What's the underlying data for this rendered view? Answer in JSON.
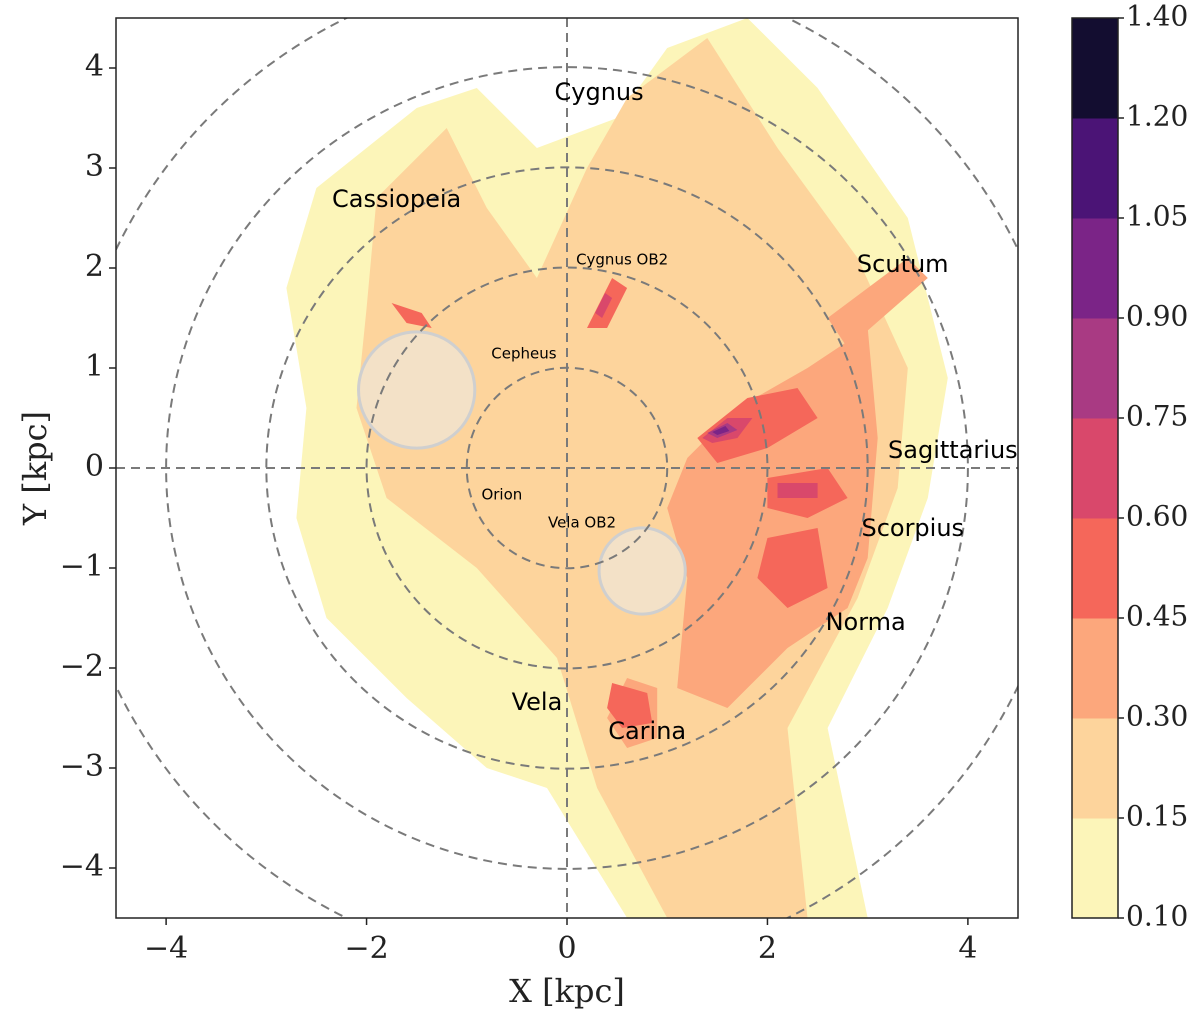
{
  "chart_data": {
    "type": "heatmap",
    "title": "",
    "xlabel": "X [kpc]",
    "ylabel": "Y [kpc]",
    "xlim": [
      -4.5,
      4.5
    ],
    "ylim": [
      -4.5,
      4.5
    ],
    "x_ticks": [
      -4,
      -2,
      0,
      2,
      4
    ],
    "y_ticks": [
      -4,
      -3,
      -2,
      -1,
      0,
      1,
      2,
      3,
      4
    ],
    "x_tick_labels": [
      "−4",
      "−2",
      "0",
      "2",
      "4"
    ],
    "y_tick_labels": [
      "−4",
      "−3",
      "−2",
      "−1",
      "0",
      "1",
      "2",
      "3",
      "4"
    ],
    "ring_radii_kpc": [
      1,
      2,
      3,
      4,
      5
    ],
    "colorbar": {
      "levels": [
        0.1,
        0.15,
        0.3,
        0.45,
        0.6,
        0.75,
        0.9,
        1.05,
        1.2,
        1.4
      ],
      "labels": [
        "0.10",
        "0.15",
        "0.30",
        "0.45",
        "0.60",
        "0.75",
        "0.90",
        "1.05",
        "1.20",
        "1.40"
      ],
      "colors": [
        "#fcf5b9",
        "#fdd49c",
        "#fca77c",
        "#f5675a",
        "#d9486b",
        "#a93a83",
        "#7b2487",
        "#4b1476",
        "#130d30"
      ]
    },
    "regions": [
      {
        "name": "Cygnus",
        "x": 0.32,
        "y": 3.75,
        "size": "large"
      },
      {
        "name": "Cassiopeia",
        "x": -1.7,
        "y": 2.68,
        "size": "large"
      },
      {
        "name": "Cygnus OB2",
        "x": 0.55,
        "y": 2.08,
        "size": "small"
      },
      {
        "name": "Scutum",
        "x": 3.35,
        "y": 2.03,
        "size": "large"
      },
      {
        "name": "Cepheus",
        "x": -0.43,
        "y": 1.14,
        "size": "small"
      },
      {
        "name": "Sagittarius",
        "x": 3.85,
        "y": 0.17,
        "size": "large"
      },
      {
        "name": "Orion",
        "x": -0.65,
        "y": -0.27,
        "size": "small"
      },
      {
        "name": "Vela OB2",
        "x": 0.15,
        "y": -0.55,
        "size": "small"
      },
      {
        "name": "Scorpius",
        "x": 3.45,
        "y": -0.61,
        "size": "large"
      },
      {
        "name": "Norma",
        "x": 2.98,
        "y": -1.55,
        "size": "large"
      },
      {
        "name": "Vela",
        "x": -0.3,
        "y": -2.35,
        "size": "large"
      },
      {
        "name": "Carina",
        "x": 0.8,
        "y": -2.64,
        "size": "large"
      }
    ],
    "masked_circles": [
      {
        "x": -1.5,
        "y": 0.78,
        "r": 0.58
      },
      {
        "x": 0.75,
        "y": -1.03,
        "r": 0.43
      }
    ],
    "filled_regions": [
      {
        "level": 0,
        "points": [
          [
            -2.5,
            2.8
          ],
          [
            -1.5,
            3.6
          ],
          [
            -0.9,
            3.8
          ],
          [
            -0.3,
            3.2
          ],
          [
            0.5,
            3.5
          ],
          [
            1.0,
            4.2
          ],
          [
            1.8,
            4.5
          ],
          [
            2.5,
            3.8
          ],
          [
            3.4,
            2.5
          ],
          [
            3.8,
            0.9
          ],
          [
            3.6,
            -0.3
          ],
          [
            3.2,
            -1.4
          ],
          [
            2.6,
            -2.6
          ],
          [
            3.0,
            -4.5
          ],
          [
            0.6,
            -4.5
          ],
          [
            -0.2,
            -3.2
          ],
          [
            -0.8,
            -3.0
          ],
          [
            -1.6,
            -2.3
          ],
          [
            -2.4,
            -1.5
          ],
          [
            -2.7,
            -0.5
          ],
          [
            -2.6,
            0.6
          ],
          [
            -2.8,
            1.8
          ]
        ]
      },
      {
        "level": 1,
        "points": [
          [
            -1.9,
            2.7
          ],
          [
            -1.2,
            3.4
          ],
          [
            -0.8,
            2.6
          ],
          [
            -0.3,
            1.9
          ],
          [
            0.2,
            3.0
          ],
          [
            0.6,
            3.7
          ],
          [
            1.4,
            4.3
          ],
          [
            2.1,
            3.2
          ],
          [
            2.9,
            2.1
          ],
          [
            3.4,
            1.0
          ],
          [
            3.3,
            -0.2
          ],
          [
            2.9,
            -1.3
          ],
          [
            2.2,
            -2.6
          ],
          [
            2.4,
            -4.5
          ],
          [
            1.0,
            -4.5
          ],
          [
            0.3,
            -3.2
          ],
          [
            -0.1,
            -1.9
          ],
          [
            -0.9,
            -1.0
          ],
          [
            -1.8,
            -0.3
          ],
          [
            -2.1,
            0.6
          ],
          [
            -2.0,
            1.6
          ]
        ]
      },
      {
        "level": 2,
        "points": [
          [
            1.2,
            0.1
          ],
          [
            1.7,
            0.6
          ],
          [
            2.4,
            1.0
          ],
          [
            3.0,
            1.4
          ],
          [
            3.1,
            0.3
          ],
          [
            3.0,
            -0.9
          ],
          [
            2.8,
            -1.4
          ],
          [
            2.2,
            -1.8
          ],
          [
            1.6,
            -2.4
          ],
          [
            1.1,
            -2.2
          ],
          [
            1.2,
            -1.1
          ],
          [
            1.0,
            -0.4
          ]
        ]
      },
      {
        "level": 2,
        "points": [
          [
            2.6,
            1.5
          ],
          [
            3.4,
            2.1
          ],
          [
            3.6,
            1.9
          ],
          [
            2.8,
            1.2
          ]
        ]
      },
      {
        "level": 2,
        "points": [
          [
            0.6,
            -2.1
          ],
          [
            0.9,
            -2.2
          ],
          [
            0.9,
            -2.7
          ],
          [
            0.6,
            -2.8
          ],
          [
            0.4,
            -2.5
          ]
        ]
      },
      {
        "level": 3,
        "points": [
          [
            1.3,
            0.3
          ],
          [
            1.8,
            0.7
          ],
          [
            2.3,
            0.8
          ],
          [
            2.5,
            0.5
          ],
          [
            2.0,
            0.2
          ],
          [
            1.5,
            0.05
          ]
        ]
      },
      {
        "level": 3,
        "points": [
          [
            2.0,
            -0.1
          ],
          [
            2.6,
            0.0
          ],
          [
            2.8,
            -0.3
          ],
          [
            2.4,
            -0.5
          ],
          [
            2.0,
            -0.4
          ]
        ]
      },
      {
        "level": 3,
        "points": [
          [
            2.0,
            -0.7
          ],
          [
            2.5,
            -0.6
          ],
          [
            2.6,
            -1.2
          ],
          [
            2.2,
            -1.4
          ],
          [
            1.9,
            -1.1
          ]
        ]
      },
      {
        "level": 3,
        "points": [
          [
            0.45,
            -2.15
          ],
          [
            0.8,
            -2.25
          ],
          [
            0.85,
            -2.55
          ],
          [
            0.55,
            -2.6
          ],
          [
            0.4,
            -2.4
          ]
        ]
      },
      {
        "level": 3,
        "points": [
          [
            0.2,
            1.4
          ],
          [
            0.45,
            1.9
          ],
          [
            0.6,
            1.8
          ],
          [
            0.4,
            1.4
          ]
        ]
      },
      {
        "level": 3,
        "points": [
          [
            -1.75,
            1.65
          ],
          [
            -1.45,
            1.55
          ],
          [
            -1.35,
            1.4
          ],
          [
            -1.6,
            1.45
          ]
        ]
      },
      {
        "level": 4,
        "points": [
          [
            1.35,
            0.3
          ],
          [
            1.6,
            0.5
          ],
          [
            1.85,
            0.5
          ],
          [
            1.7,
            0.3
          ],
          [
            1.45,
            0.25
          ]
        ]
      },
      {
        "level": 4,
        "points": [
          [
            2.1,
            -0.15
          ],
          [
            2.5,
            -0.15
          ],
          [
            2.5,
            -0.3
          ],
          [
            2.1,
            -0.3
          ]
        ]
      },
      {
        "level": 4,
        "points": [
          [
            0.28,
            1.55
          ],
          [
            0.38,
            1.75
          ],
          [
            0.45,
            1.7
          ],
          [
            0.35,
            1.5
          ]
        ]
      },
      {
        "level": 5,
        "points": [
          [
            1.4,
            0.35
          ],
          [
            1.6,
            0.45
          ],
          [
            1.7,
            0.38
          ],
          [
            1.5,
            0.3
          ]
        ]
      },
      {
        "level": 6,
        "points": [
          [
            1.45,
            0.36
          ],
          [
            1.58,
            0.42
          ],
          [
            1.62,
            0.37
          ],
          [
            1.5,
            0.33
          ]
        ]
      }
    ]
  }
}
